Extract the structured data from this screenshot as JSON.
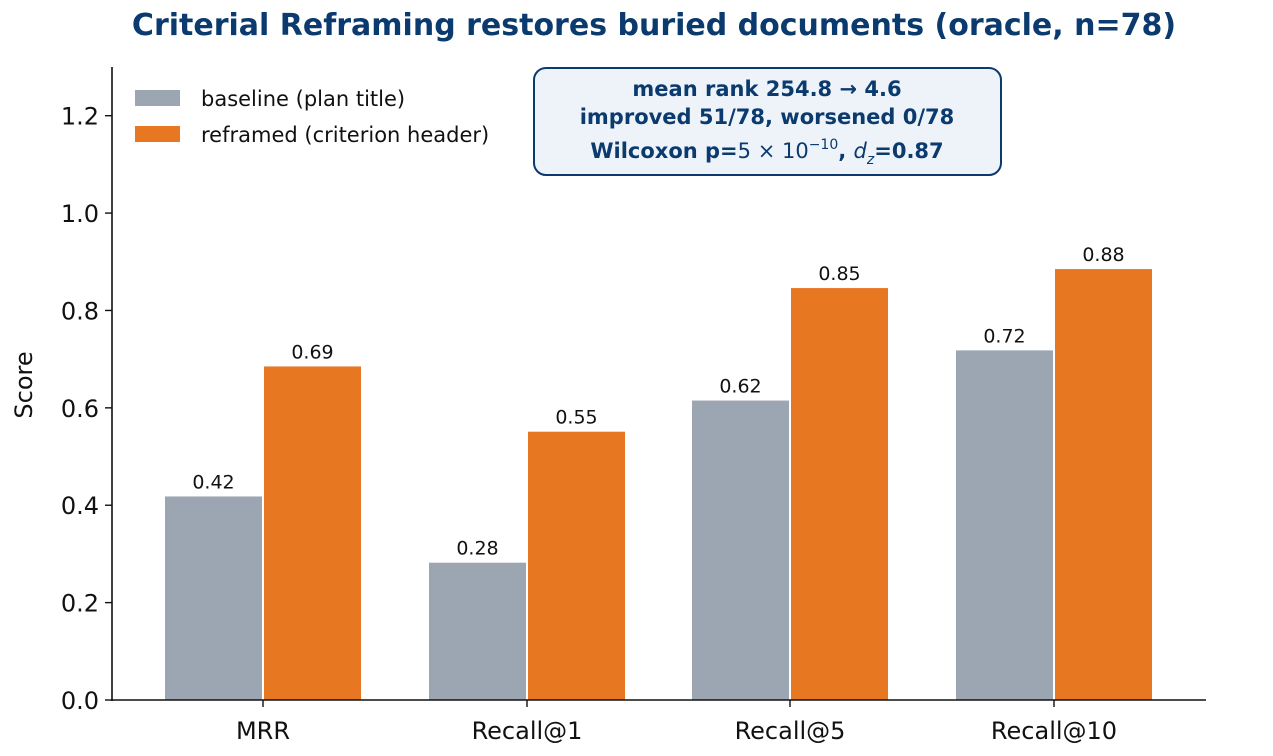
{
  "chart_data": {
    "type": "bar",
    "title": "Criterial Reframing restores buried documents (oracle, n=78)",
    "xlabel": "",
    "ylabel": "Score",
    "categories": [
      "MRR",
      "Recall@1",
      "Recall@5",
      "Recall@10"
    ],
    "ylim": [
      0,
      1.3
    ],
    "yticks": [
      0.0,
      0.2,
      0.4,
      0.6,
      0.8,
      1.0,
      1.2
    ],
    "ytick_labels": [
      "0.0",
      "0.2",
      "0.4",
      "0.6",
      "0.8",
      "1.0",
      "1.2"
    ],
    "grid": false,
    "legend_position": "top-left",
    "series": [
      {
        "name": "baseline (plan title)",
        "color": "#9ca6b2",
        "values": [
          0.418,
          0.282,
          0.615,
          0.718
        ],
        "labels": [
          "0.42",
          "0.28",
          "0.62",
          "0.72"
        ]
      },
      {
        "name": "reframed (criterion header)",
        "color": "#e87722",
        "values": [
          0.685,
          0.551,
          0.846,
          0.885
        ],
        "labels": [
          "0.69",
          "0.55",
          "0.85",
          "0.88"
        ]
      }
    ],
    "annotation": {
      "line1": "mean rank 254.8 → 4.6",
      "line2": "improved 51/78, worsened 0/78",
      "line3_prefix": "Wilcoxon p=",
      "line3_pvalue": "5 × 10",
      "line3_exponent": "−10",
      "line3_sep": ", ",
      "line3_stat": "d",
      "line3_stat_sub": "z",
      "line3_stat_value": "=0.87",
      "box_fill": "#eef3f9",
      "box_stroke": "#0b3a6e"
    }
  }
}
